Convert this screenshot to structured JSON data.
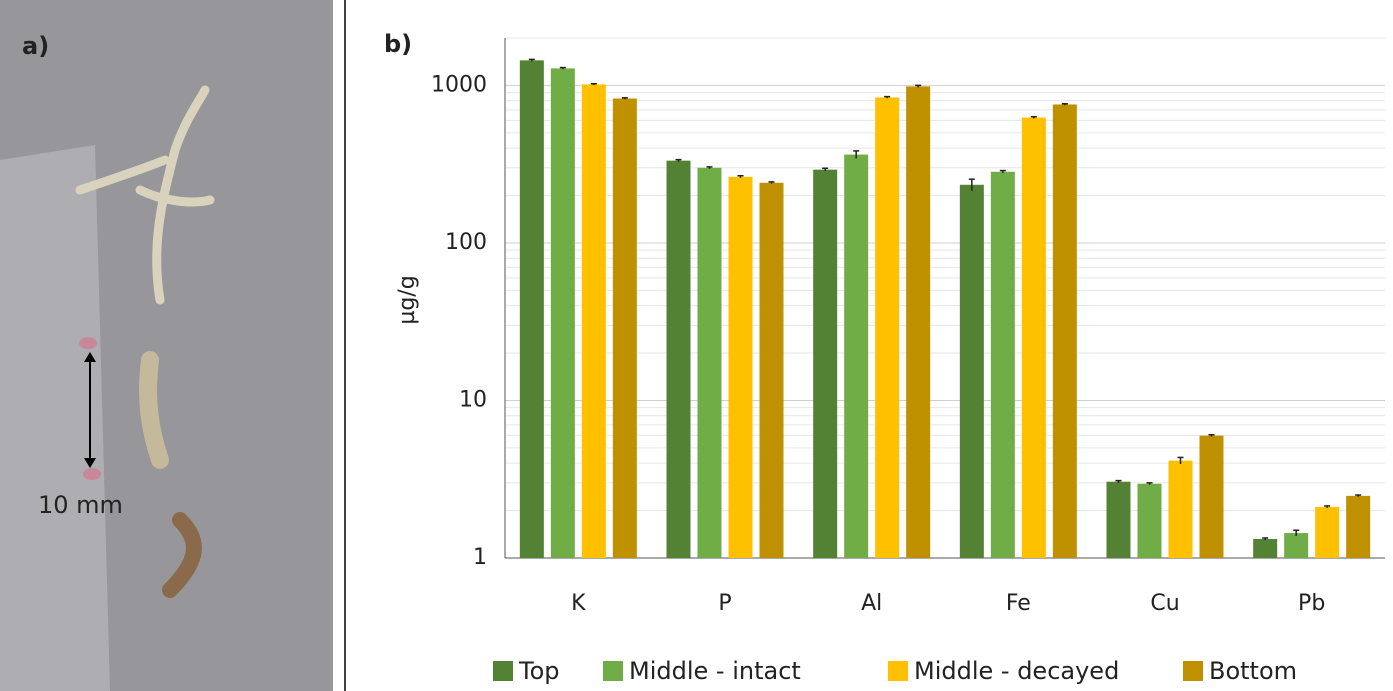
{
  "photo": {
    "label": "a)",
    "scale_label": "10 mm"
  },
  "chart_data": {
    "type": "bar",
    "panel_label": "b)",
    "y_label": "µg/g",
    "categories": [
      "K",
      "P",
      "Al",
      "Fe",
      "Cu",
      "Pb"
    ],
    "series": [
      {
        "name": "Top",
        "color": "#548235",
        "values": [
          1443,
          333,
          292,
          234,
          3.05,
          1.32
        ],
        "errors": [
          20,
          5,
          6,
          20,
          0.05,
          0.02
        ]
      },
      {
        "name": "Middle - intact",
        "color": "#70ad47",
        "values": [
          1283,
          300,
          364,
          283,
          2.96,
          1.44
        ],
        "errors": [
          15,
          4,
          20,
          5,
          0.04,
          0.06
        ]
      },
      {
        "name": "Middle - decayed",
        "color": "#ffc000",
        "values": [
          1015,
          263,
          839,
          625,
          4.15,
          2.11
        ],
        "errors": [
          10,
          4,
          10,
          8,
          0.2,
          0.03
        ]
      },
      {
        "name": "Bottom",
        "color": "#bf9000",
        "values": [
          826,
          241,
          986,
          757,
          5.98,
          2.48
        ],
        "errors": [
          8,
          3,
          15,
          8,
          0.08,
          0.03
        ]
      }
    ],
    "ylim": [
      1,
      2000
    ],
    "yticks": [
      1,
      10,
      100,
      1000
    ],
    "log_scale": true,
    "grid": true,
    "minor_grid": true,
    "legend": "bottom"
  }
}
